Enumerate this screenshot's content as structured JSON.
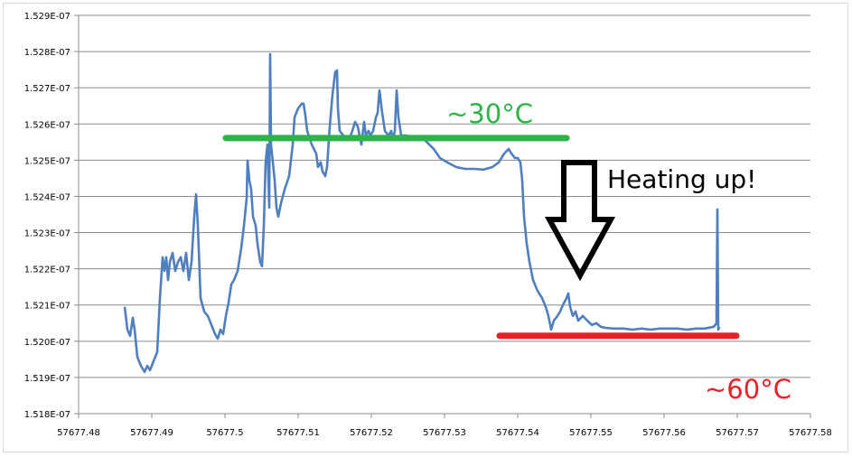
{
  "chart_data": {
    "type": "line",
    "title": "",
    "xlabel": "",
    "ylabel": "",
    "xlim": [
      57677.48,
      57677.58
    ],
    "ylim": [
      1.518e-07,
      1.529e-07
    ],
    "grid": {
      "horizontal": true,
      "vertical": false
    },
    "legend": "none",
    "x_ticks": [
      "57677.48",
      "57677.49",
      "57677.5",
      "57677.51",
      "57677.52",
      "57677.53",
      "57677.54",
      "57677.55",
      "57677.56",
      "57677.57",
      "57677.58"
    ],
    "y_ticks": [
      "1.518E-07",
      "1.519E-07",
      "1.520E-07",
      "1.521E-07",
      "1.522E-07",
      "1.523E-07",
      "1.524E-07",
      "1.525E-07",
      "1.526E-07",
      "1.527E-07",
      "1.528E-07",
      "1.529E-07"
    ],
    "series": [
      {
        "color": "#4f7fbf",
        "x": [
          57677.4863,
          57677.48667,
          57677.48704,
          57677.48741,
          57677.48765,
          57677.48802,
          57677.48852,
          57677.48901,
          57677.48938,
          57677.48975,
          57677.49025,
          57677.49074,
          57677.49111,
          57677.49148,
          57677.49173,
          57677.49198,
          57677.49222,
          57677.49247,
          57677.49284,
          57677.49321,
          57677.49358,
          57677.49395,
          57677.49432,
          57677.49469,
          57677.49506,
          57677.49543,
          57677.4958,
          57677.49605,
          57677.4963,
          57677.49667,
          57677.49716,
          57677.49765,
          57677.49815,
          57677.49864,
          57677.49901,
          57677.49938,
          57677.49975,
          57677.50012,
          57677.50049,
          57677.50086,
          57677.50123,
          57677.50173,
          57677.50222,
          57677.50259,
          57677.50296,
          57677.50309,
          57677.50333,
          57677.50358,
          57677.50383,
          57677.5042,
          57677.50444,
          57677.50481,
          57677.50506,
          57677.50531,
          57677.50556,
          57677.5058,
          57677.50605,
          57677.50617,
          57677.5063,
          57677.50654,
          57677.50679,
          57677.50704,
          57677.50728,
          57677.50765,
          57677.50815,
          57677.50877,
          57677.50926,
          57677.50951,
          57677.50975,
          57677.51,
          57677.51049,
          57677.51074,
          57677.51099,
          57677.51123,
          57677.51185,
          57677.51247,
          57677.51272,
          57677.51309,
          57677.51333,
          57677.5137,
          57677.51395,
          57677.51432,
          57677.51469,
          57677.51506,
          57677.51531,
          57677.51543,
          57677.51568,
          57677.51617,
          57677.51679,
          57677.51716,
          57677.51741,
          57677.51778,
          57677.51815,
          57677.51864,
          57677.51901,
          57677.51926,
          57677.51963,
          57677.51988,
          57677.52025,
          57677.52062,
          57677.52086,
          57677.52111,
          57677.52148,
          57677.52185,
          57677.52235,
          57677.52272,
          57677.52296,
          57677.52321,
          57677.52346,
          57677.5237,
          57677.52407,
          57677.52481,
          57677.52605,
          57677.52728,
          57677.52852,
          57677.52938,
          57677.53037,
          57677.5316,
          57677.53284,
          57677.53407,
          57677.53531,
          57677.53654,
          57677.53741,
          57677.53815,
          57677.53877,
          57677.53914,
          57677.53963,
          57677.54,
          57677.54037,
          57677.54062,
          57677.54086,
          57677.54123,
          57677.5416,
          57677.5421,
          57677.54272,
          57677.54333,
          57677.54383,
          57677.5442,
          57677.54457,
          57677.54494,
          57677.54543,
          57677.5458,
          57677.54617,
          57677.54667,
          57677.54691,
          57677.54716,
          57677.54753,
          57677.5479,
          57677.54827,
          57677.54889,
          57677.54951,
          57677.55012,
          57677.55074,
          57677.55136,
          57677.55198,
          57677.55321,
          57677.55444,
          57677.55568,
          57677.55691,
          57677.55815,
          57677.55938,
          57677.56062,
          57677.56185,
          57677.56309,
          57677.56432,
          57677.56556,
          57677.56679,
          57677.56716,
          57677.56728,
          57677.56741,
          57677.56753
        ],
        "y": [
          1.52095e-07,
          1.52032e-07,
          1.52015e-07,
          1.52065e-07,
          1.52032e-07,
          1.51957e-07,
          1.51932e-07,
          1.51915e-07,
          1.51932e-07,
          1.5192e-07,
          1.51945e-07,
          1.5197e-07,
          1.52119e-07,
          1.52232e-07,
          1.52194e-07,
          1.52232e-07,
          1.52169e-07,
          1.52219e-07,
          1.52244e-07,
          1.52194e-07,
          1.52219e-07,
          1.52232e-07,
          1.52194e-07,
          1.52244e-07,
          1.52169e-07,
          1.52219e-07,
          1.52344e-07,
          1.52406e-07,
          1.52319e-07,
          1.52119e-07,
          1.52082e-07,
          1.5207e-07,
          1.52045e-07,
          1.5202e-07,
          1.52007e-07,
          1.52032e-07,
          1.5202e-07,
          1.5207e-07,
          1.52107e-07,
          1.52157e-07,
          1.52169e-07,
          1.52194e-07,
          1.52257e-07,
          1.52319e-07,
          1.52394e-07,
          1.52499e-07,
          1.52444e-07,
          1.52419e-07,
          1.52344e-07,
          1.52319e-07,
          1.52269e-07,
          1.52219e-07,
          1.52207e-07,
          1.52319e-07,
          1.52494e-07,
          1.52543e-07,
          1.52369e-07,
          1.52793e-07,
          1.52543e-07,
          1.52494e-07,
          1.52444e-07,
          1.52369e-07,
          1.52344e-07,
          1.52381e-07,
          1.52419e-07,
          1.52456e-07,
          1.52543e-07,
          1.52618e-07,
          1.52631e-07,
          1.52643e-07,
          1.52656e-07,
          1.52656e-07,
          1.52623e-07,
          1.52581e-07,
          1.52543e-07,
          1.52518e-07,
          1.52481e-07,
          1.52494e-07,
          1.52469e-07,
          1.52456e-07,
          1.52481e-07,
          1.52593e-07,
          1.52681e-07,
          1.52743e-07,
          1.52748e-07,
          1.52643e-07,
          1.52581e-07,
          1.52568e-07,
          1.52563e-07,
          1.52568e-07,
          1.52581e-07,
          1.52606e-07,
          1.52593e-07,
          1.52543e-07,
          1.52606e-07,
          1.52568e-07,
          1.52581e-07,
          1.52568e-07,
          1.52581e-07,
          1.52618e-07,
          1.52631e-07,
          1.52693e-07,
          1.52631e-07,
          1.52581e-07,
          1.52568e-07,
          1.52581e-07,
          1.52556e-07,
          1.52581e-07,
          1.52693e-07,
          1.52618e-07,
          1.52568e-07,
          1.52568e-07,
          1.52563e-07,
          1.52556e-07,
          1.52531e-07,
          1.52506e-07,
          1.52494e-07,
          1.52481e-07,
          1.52476e-07,
          1.52476e-07,
          1.52474e-07,
          1.52481e-07,
          1.52494e-07,
          1.52518e-07,
          1.52531e-07,
          1.52518e-07,
          1.52506e-07,
          1.52506e-07,
          1.52494e-07,
          1.52444e-07,
          1.52344e-07,
          1.52269e-07,
          1.52219e-07,
          1.52169e-07,
          1.52139e-07,
          1.52119e-07,
          1.52095e-07,
          1.5207e-07,
          1.52032e-07,
          1.52057e-07,
          1.5207e-07,
          1.52082e-07,
          1.521e-07,
          1.52119e-07,
          1.52132e-07,
          1.52095e-07,
          1.5207e-07,
          1.52082e-07,
          1.52057e-07,
          1.5207e-07,
          1.52057e-07,
          1.52045e-07,
          1.5205e-07,
          1.5204e-07,
          1.52037e-07,
          1.52035e-07,
          1.52035e-07,
          1.52032e-07,
          1.52035e-07,
          1.52032e-07,
          1.52035e-07,
          1.52035e-07,
          1.52035e-07,
          1.52032e-07,
          1.52035e-07,
          1.52035e-07,
          1.5204e-07,
          1.5205e-07,
          1.52364e-07,
          1.52032e-07,
          1.5204e-07
        ]
      }
    ],
    "annotations": {
      "cold_line": {
        "x": [
          57677.50012,
          57677.54667
        ],
        "y": 1.52561e-07,
        "color": "#2db34a"
      },
      "hot_line": {
        "x": [
          57677.53753,
          57677.56988
        ],
        "y": 1.52015e-07,
        "color": "#e8202a"
      },
      "cold_label": {
        "text": "~30°C",
        "color": "#2db34a"
      },
      "hot_label": {
        "text": "~60°C",
        "color": "#e8202a"
      },
      "arrow_label": {
        "text": "Heating up!",
        "color": "#000000"
      },
      "arrow_icon": "down-arrow-outline"
    }
  }
}
